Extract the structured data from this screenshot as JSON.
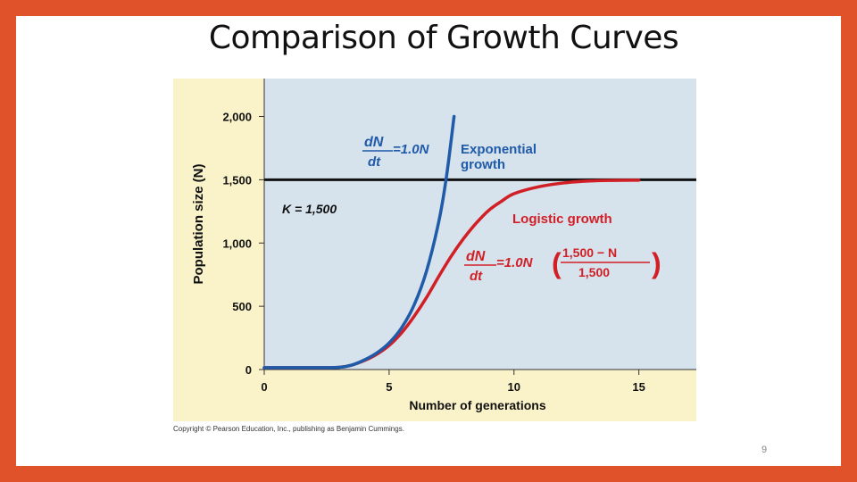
{
  "slide": {
    "title": "Comparison of Growth Curves",
    "page_number": "9",
    "copyright": "Copyright © Pearson Education, Inc., publishing as Benjamin Cummings."
  },
  "colors": {
    "slide_border": "#E0522A",
    "plot_background": "#D6E2EC",
    "figure_background": "#FAF3C9",
    "exponential": "#1F5BA8",
    "logistic": "#D21F26",
    "carrying_capacity": "#111111"
  },
  "chart_data": {
    "type": "line",
    "xlabel": "Number of generations",
    "ylabel": "Population size (N)",
    "xlim": [
      0,
      17.3
    ],
    "ylim": [
      0,
      2300
    ],
    "x_ticks": [
      0,
      5,
      10,
      15
    ],
    "x_tick_labels": [
      "0",
      "5",
      "10",
      "15"
    ],
    "y_ticks": [
      0,
      500,
      1000,
      1500,
      2000
    ],
    "y_tick_labels": [
      "0",
      "500",
      "1,000",
      "1,500",
      "2,000"
    ],
    "grid": false,
    "series": [
      {
        "name": "Exponential growth",
        "label_lines": [
          "Exponential",
          "growth"
        ],
        "equation": {
          "numerator": "dN",
          "denominator": "dt",
          "rhs": "=1.0N"
        },
        "x": [
          0,
          1,
          2,
          3,
          3.5,
          4,
          4.5,
          5,
          5.5,
          6,
          6.5,
          7,
          7.3,
          7.6
        ],
        "y": [
          15,
          15,
          15,
          18,
          35,
          75,
          130,
          210,
          330,
          510,
          780,
          1180,
          1530,
          2000
        ]
      },
      {
        "name": "Logistic growth",
        "label_lines": [
          "Logistic growth"
        ],
        "equation": {
          "numerator": "dN",
          "denominator": "dt",
          "rhs": "=1.0N",
          "frac_num": "1,500 − N",
          "frac_den": "1,500"
        },
        "x": [
          0,
          1,
          2,
          3,
          3.5,
          4,
          4.5,
          5,
          5.5,
          6,
          6.5,
          7,
          7.5,
          8,
          8.5,
          9,
          9.5,
          10,
          11,
          12,
          13,
          14,
          15
        ],
        "y": [
          15,
          15,
          15,
          18,
          35,
          70,
          120,
          190,
          290,
          420,
          570,
          740,
          900,
          1040,
          1160,
          1260,
          1330,
          1390,
          1445,
          1475,
          1490,
          1495,
          1497
        ]
      }
    ],
    "reference_lines": [
      {
        "name": "Carrying capacity",
        "label": "K = 1,500",
        "y": 1500
      }
    ]
  }
}
